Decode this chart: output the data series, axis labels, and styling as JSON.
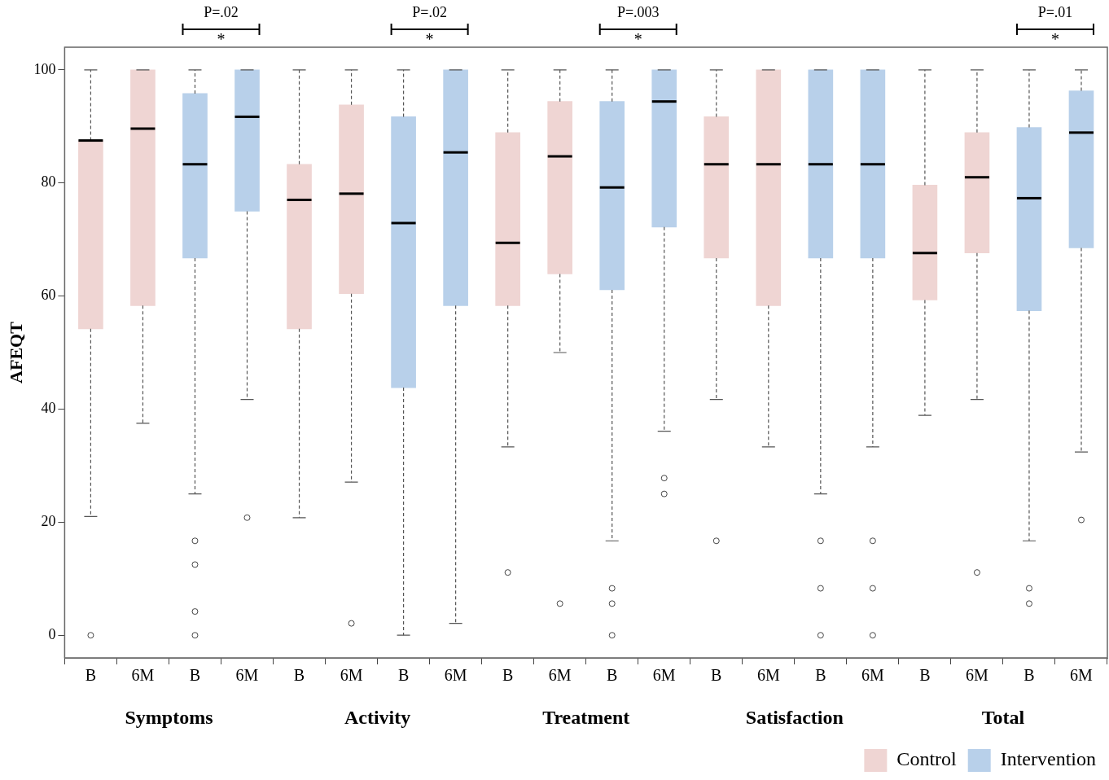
{
  "chart_data": {
    "type": "box",
    "ylabel": "AFEQT",
    "categories": [
      "B",
      "6M",
      "B",
      "6M",
      "B",
      "6M",
      "B",
      "6M",
      "B",
      "6M",
      "B",
      "6M",
      "B",
      "6M",
      "B",
      "6M",
      "B",
      "6M",
      "B",
      "6M"
    ],
    "ylim": [
      -4,
      104
    ],
    "yticks": [
      0,
      20,
      40,
      60,
      80,
      100
    ],
    "grid": false,
    "legend": "bottom right",
    "annotations": [
      "Symptoms",
      "Activity",
      "Treatment",
      "Satisfaction",
      "Total",
      "P=.02",
      "*",
      "P=.02",
      "*",
      "P=.003",
      "*",
      "P=.01",
      "*"
    ],
    "series": [
      {
        "name": "Control",
        "color": "#efd5d3",
        "boxes": [
          {
            "low": 21,
            "q1": 54.2,
            "median": 87.5,
            "q3": 87.5,
            "high": 100,
            "outliers": [
              0
            ]
          },
          {
            "low": 37.5,
            "q1": 58.3,
            "median": 89.6,
            "q3": 100,
            "high": 100
          },
          null,
          null,
          {
            "low": 20.8,
            "q1": 54.2,
            "median": 77,
            "q3": 83.3,
            "high": 100
          },
          {
            "low": 27.1,
            "q1": 60.4,
            "median": 78.1,
            "q3": 93.8,
            "high": 100,
            "outliers": [
              2.1
            ]
          },
          null,
          null,
          {
            "low": 33.3,
            "q1": 58.3,
            "median": 69.4,
            "q3": 88.9,
            "high": 100,
            "outliers": [
              11.1
            ]
          },
          {
            "low": 50,
            "q1": 63.9,
            "median": 84.7,
            "q3": 94.4,
            "high": 100,
            "outliers": [
              5.6
            ]
          },
          null,
          null,
          {
            "low": 41.7,
            "q1": 66.7,
            "median": 83.3,
            "q3": 91.7,
            "high": 100,
            "outliers": [
              16.7
            ]
          },
          {
            "low": 33.3,
            "q1": 58.3,
            "median": 83.3,
            "q3": 100,
            "high": 100
          },
          null,
          null,
          {
            "low": 38.9,
            "q1": 59.3,
            "median": 67.6,
            "q3": 79.6,
            "high": 100
          },
          {
            "low": 41.7,
            "q1": 67.6,
            "median": 81,
            "q3": 88.9,
            "high": 100,
            "outliers": [
              11.1
            ]
          },
          null,
          null
        ]
      },
      {
        "name": "Intervention",
        "color": "#b8d0ea",
        "boxes": [
          null,
          null,
          {
            "low": 25,
            "q1": 66.7,
            "median": 83.3,
            "q3": 95.8,
            "high": 100,
            "outliers": [
              16.7,
              12.5,
              4.2,
              0
            ]
          },
          {
            "low": 41.7,
            "q1": 75,
            "median": 91.7,
            "q3": 100,
            "high": 100,
            "outliers": [
              20.8
            ]
          },
          null,
          null,
          {
            "low": 0,
            "q1": 43.8,
            "median": 72.9,
            "q3": 91.7,
            "high": 100
          },
          {
            "low": 2.1,
            "q1": 58.3,
            "median": 85.4,
            "q3": 100,
            "high": 100
          },
          null,
          null,
          {
            "low": 16.7,
            "q1": 61.1,
            "median": 79.2,
            "q3": 94.4,
            "high": 100,
            "outliers": [
              8.3,
              5.6,
              0
            ]
          },
          {
            "low": 36.1,
            "q1": 72.2,
            "median": 94.4,
            "q3": 100,
            "high": 100,
            "outliers": [
              27.8,
              25
            ]
          },
          null,
          null,
          {
            "low": 25,
            "q1": 66.7,
            "median": 83.3,
            "q3": 100,
            "high": 100,
            "outliers": [
              16.7,
              8.3,
              0
            ]
          },
          {
            "low": 33.3,
            "q1": 66.7,
            "median": 83.3,
            "q3": 100,
            "high": 100,
            "outliers": [
              16.7,
              8.3,
              0
            ]
          },
          null,
          null,
          {
            "low": 16.7,
            "q1": 57.4,
            "median": 77.3,
            "q3": 89.8,
            "high": 100,
            "outliers": [
              8.3,
              5.6
            ]
          },
          {
            "low": 32.4,
            "q1": 68.5,
            "median": 88.9,
            "q3": 96.3,
            "high": 100,
            "outliers": [
              20.4
            ]
          }
        ]
      }
    ]
  }
}
